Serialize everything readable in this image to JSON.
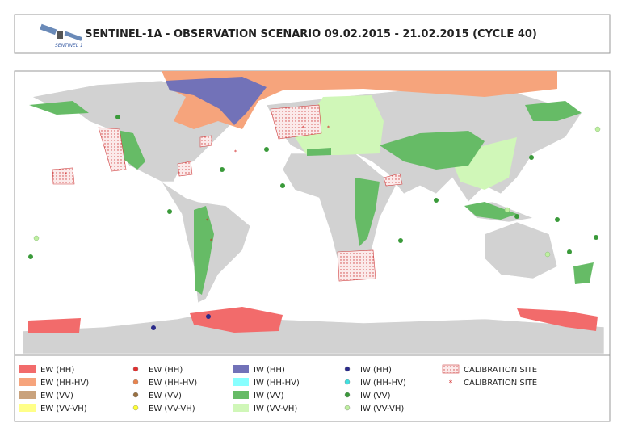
{
  "header": {
    "title": "SENTINEL-1A - OBSERVATION SCENARIO 09.02.2015 - 21.02.2015 (CYCLE 40)",
    "logo_text": "SENTINEL 1"
  },
  "legend": {
    "columns": [
      [
        {
          "label": "EW (HH)",
          "marker": "rect",
          "color": "#f26b6b"
        },
        {
          "label": "EW (HH-HV)",
          "marker": "rect",
          "color": "#f6a47c"
        },
        {
          "label": "EW (VV)",
          "marker": "rect",
          "color": "#c9a27c"
        },
        {
          "label": "EW (VV-VH)",
          "marker": "rect",
          "color": "#ffff88"
        }
      ],
      [
        {
          "label": "EW (HH)",
          "marker": "dot",
          "color": "#e03030"
        },
        {
          "label": "EW (HH-HV)",
          "marker": "dot",
          "color": "#e8844e"
        },
        {
          "label": "EW (VV)",
          "marker": "dot",
          "color": "#9a7040"
        },
        {
          "label": "EW (VV-VH)",
          "marker": "dot",
          "color": "#ffff30"
        }
      ],
      [
        {
          "label": "IW (HH)",
          "marker": "rect",
          "color": "#7272b8"
        },
        {
          "label": "IW (HH-HV)",
          "marker": "rect",
          "color": "#88ffff"
        },
        {
          "label": "IW (VV)",
          "marker": "rect",
          "color": "#66bb66"
        },
        {
          "label": "IW (VV-VH)",
          "marker": "rect",
          "color": "#d0f7b8"
        }
      ],
      [
        {
          "label": "IW (HH)",
          "marker": "dot",
          "color": "#2a2a8a"
        },
        {
          "label": "IW (HH-HV)",
          "marker": "dot",
          "color": "#40e0e0"
        },
        {
          "label": "IW (VV)",
          "marker": "dot",
          "color": "#3a9a3a"
        },
        {
          "label": "IW (VV-VH)",
          "marker": "dot",
          "color": "#bff0a0"
        }
      ],
      [
        {
          "label": "CALIBRATION SITE",
          "marker": "hatch",
          "color": "#d04040"
        },
        {
          "label": "CALIBRATION SITE",
          "marker": "star",
          "color": "#d02020"
        }
      ]
    ]
  }
}
